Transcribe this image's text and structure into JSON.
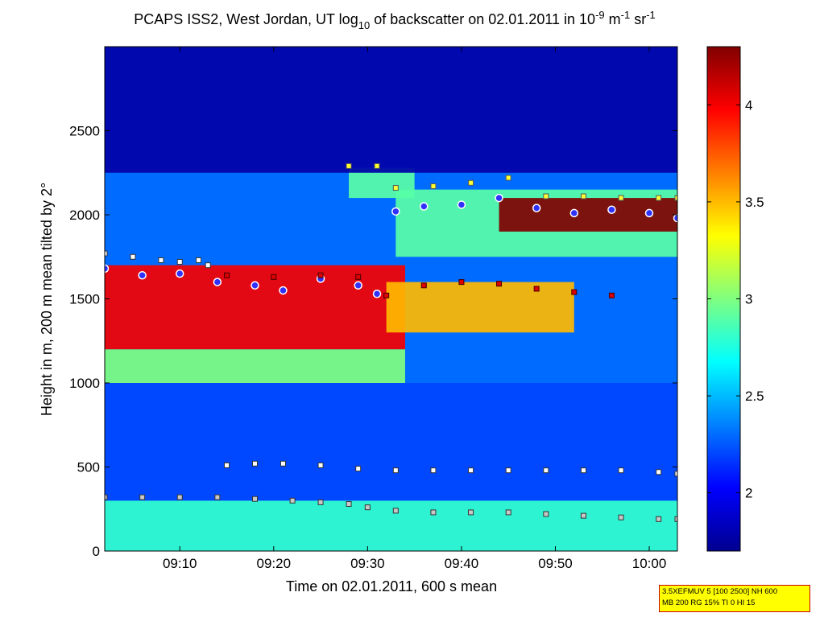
{
  "chart_data": {
    "type": "heatmap",
    "title": {
      "pre": "PCAPS ISS2, West Jordan, UT log",
      "sub": "10",
      "mid": " of backscatter on 02.01.2011 in 10",
      "sup1": "-9",
      "unit1": " m",
      "sup2": "-1",
      "unit2": " sr",
      "sup3": "-1"
    },
    "xlabel": "Time on 02.01.2011, 600 s mean",
    "ylabel": "Height in m, 200 m mean tilted by 2°",
    "x_unit": "minutes",
    "xlim": [
      "09:02",
      "10:03"
    ],
    "ylim": [
      0,
      3000
    ],
    "x_ticks": [
      "09:10",
      "09:20",
      "09:30",
      "09:40",
      "09:50",
      "10:00"
    ],
    "y_ticks": [
      0,
      500,
      1000,
      1500,
      2000,
      2500
    ],
    "colorbar": {
      "range": [
        1.7,
        4.3
      ],
      "ticks": [
        2,
        2.5,
        3,
        3.5,
        4
      ],
      "tick_labels": [
        "2",
        "2.5",
        "3",
        "3.5",
        "4"
      ],
      "colormap": "jet"
    },
    "layers": [
      {
        "time_range": [
          "09:02",
          "10:03"
        ],
        "height_range": [
          0,
          300
        ],
        "value": 2.8
      },
      {
        "time_range": [
          "09:02",
          "10:03"
        ],
        "height_range": [
          300,
          1000
        ],
        "value": 2.2
      },
      {
        "time_range": [
          "09:02",
          "09:34"
        ],
        "height_range": [
          1000,
          1200
        ],
        "value": 3.0
      },
      {
        "time_range": [
          "09:02",
          "09:34"
        ],
        "height_range": [
          1200,
          1700
        ],
        "value": 4.0
      },
      {
        "time_range": [
          "09:32",
          "09:52"
        ],
        "height_range": [
          1300,
          1600
        ],
        "value": 3.5
      },
      {
        "time_range": [
          "09:28",
          "09:35"
        ],
        "height_range": [
          2100,
          2280
        ],
        "value": 2.9
      },
      {
        "time_range": [
          "09:33",
          "10:03"
        ],
        "height_range": [
          1750,
          2150
        ],
        "value": 2.9
      },
      {
        "time_range": [
          "09:44",
          "10:03"
        ],
        "height_range": [
          1900,
          2100
        ],
        "value": 4.3
      },
      {
        "time_range": [
          "09:02",
          "10:03"
        ],
        "height_range": [
          2250,
          3000
        ],
        "value": 1.8
      }
    ],
    "series": [
      {
        "marker": "white-square",
        "x": [
          "09:02",
          "09:05",
          "09:08",
          "09:10",
          "09:12",
          "09:13"
        ],
        "y": [
          1770,
          1750,
          1730,
          1720,
          1730,
          1700
        ]
      },
      {
        "marker": "blue-circle-white-edge",
        "x": [
          "09:02",
          "09:06",
          "09:10",
          "09:14",
          "09:18",
          "09:21",
          "09:25",
          "09:29",
          "09:31",
          "09:33",
          "09:36",
          "09:40",
          "09:44",
          "09:48",
          "09:52",
          "09:56",
          "10:00",
          "10:03"
        ],
        "y": [
          1680,
          1640,
          1650,
          1600,
          1580,
          1550,
          1620,
          1580,
          1530,
          2020,
          2050,
          2060,
          2100,
          2040,
          2010,
          2030,
          2010,
          1980
        ]
      },
      {
        "marker": "red-square",
        "x": [
          "09:15",
          "09:20",
          "09:25",
          "09:29",
          "09:32",
          "09:36",
          "09:40",
          "09:44",
          "09:48",
          "09:52",
          "09:56"
        ],
        "y": [
          1640,
          1630,
          1640,
          1630,
          1520,
          1580,
          1600,
          1590,
          1560,
          1540,
          1520
        ]
      },
      {
        "marker": "yellow-square",
        "x": [
          "09:28",
          "09:31",
          "09:33",
          "09:37",
          "09:41",
          "09:45",
          "09:49",
          "09:53",
          "09:57",
          "10:01",
          "10:03"
        ],
        "y": [
          2290,
          2290,
          2160,
          2170,
          2190,
          2220,
          2110,
          2110,
          2100,
          2100,
          2100
        ]
      },
      {
        "marker": "white-square",
        "x": [
          "09:15",
          "09:18",
          "09:21",
          "09:25",
          "09:29",
          "09:33",
          "09:37",
          "09:41",
          "09:45",
          "09:49",
          "09:53",
          "09:57",
          "10:01",
          "10:03"
        ],
        "y": [
          510,
          520,
          520,
          510,
          490,
          480,
          480,
          480,
          480,
          480,
          480,
          480,
          470,
          460
        ]
      },
      {
        "marker": "gray-square",
        "x": [
          "09:02",
          "09:06",
          "09:10",
          "09:14",
          "09:18",
          "09:22",
          "09:25",
          "09:28",
          "09:30",
          "09:33",
          "09:37",
          "09:41",
          "09:45",
          "09:49",
          "09:53",
          "09:57",
          "10:01",
          "10:03"
        ],
        "y": [
          320,
          320,
          320,
          320,
          310,
          300,
          290,
          280,
          260,
          240,
          230,
          230,
          230,
          220,
          210,
          200,
          190,
          190
        ]
      }
    ]
  },
  "annotation": {
    "line1": "3.5XEFMUV 5 [100 2500] NH 600",
    "line2": "MB 200 RG 15% TI 0 HI 15"
  }
}
